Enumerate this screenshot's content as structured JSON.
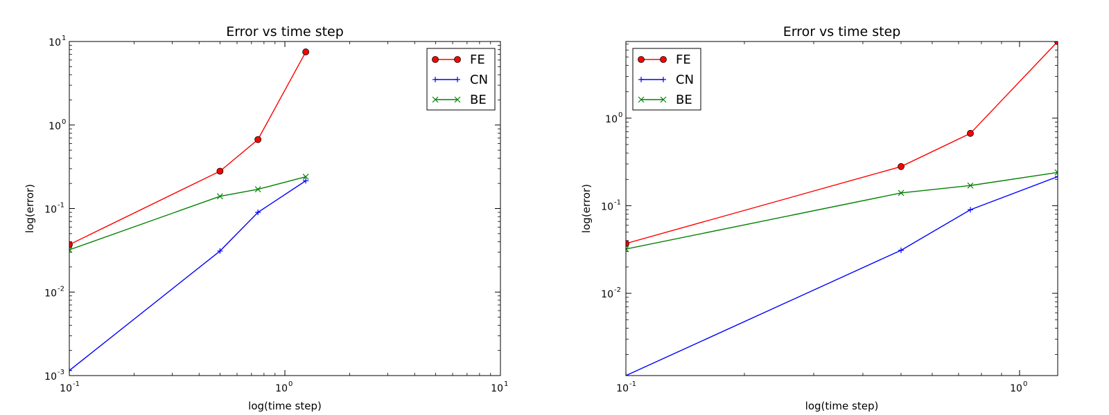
{
  "chart_data": [
    {
      "type": "line",
      "title": "Error vs time step",
      "xlabel": "log(time step)",
      "ylabel": "log(error)",
      "xscale": "log",
      "yscale": "log",
      "xlim": [
        0.1,
        10
      ],
      "ylim": [
        0.001,
        10
      ],
      "xticks": [
        {
          "base": "10",
          "exp": "-1"
        },
        {
          "base": "10",
          "exp": "0"
        },
        {
          "base": "10",
          "exp": "1"
        }
      ],
      "yticks": [
        {
          "base": "10",
          "exp": "-3"
        },
        {
          "base": "10",
          "exp": "-2"
        },
        {
          "base": "10",
          "exp": "-1"
        },
        {
          "base": "10",
          "exp": "0"
        },
        {
          "base": "10",
          "exp": "1"
        }
      ],
      "legend_position": "top-right",
      "x": [
        0.1,
        0.5,
        0.75,
        1.25
      ],
      "series": [
        {
          "name": "FE",
          "color": "#ff0000",
          "marker": "circle",
          "values": [
            0.037,
            0.28,
            0.67,
            7.5
          ]
        },
        {
          "name": "CN",
          "color": "#0000ff",
          "marker": "plus",
          "values": [
            0.00115,
            0.031,
            0.09,
            0.215
          ]
        },
        {
          "name": "BE",
          "color": "#008000",
          "marker": "x",
          "values": [
            0.032,
            0.14,
            0.17,
            0.24
          ]
        }
      ]
    },
    {
      "type": "line",
      "title": "Error vs time step",
      "xlabel": "log(time step)",
      "ylabel": "log(error)",
      "xscale": "log",
      "yscale": "log",
      "xlim": [
        0.1,
        1.25
      ],
      "ylim": [
        0.00115,
        7.5
      ],
      "xticks": [
        {
          "base": "10",
          "exp": "-1"
        },
        {
          "base": "10",
          "exp": "0"
        }
      ],
      "yticks": [
        {
          "base": "10",
          "exp": "-2"
        },
        {
          "base": "10",
          "exp": "-1"
        },
        {
          "base": "10",
          "exp": "0"
        }
      ],
      "legend_position": "top-left",
      "x": [
        0.1,
        0.5,
        0.75,
        1.25
      ],
      "series": [
        {
          "name": "FE",
          "color": "#ff0000",
          "marker": "circle",
          "values": [
            0.037,
            0.28,
            0.67,
            7.5
          ]
        },
        {
          "name": "CN",
          "color": "#0000ff",
          "marker": "plus",
          "values": [
            0.00115,
            0.031,
            0.09,
            0.215
          ]
        },
        {
          "name": "BE",
          "color": "#008000",
          "marker": "x",
          "values": [
            0.032,
            0.14,
            0.17,
            0.24
          ]
        }
      ]
    }
  ]
}
